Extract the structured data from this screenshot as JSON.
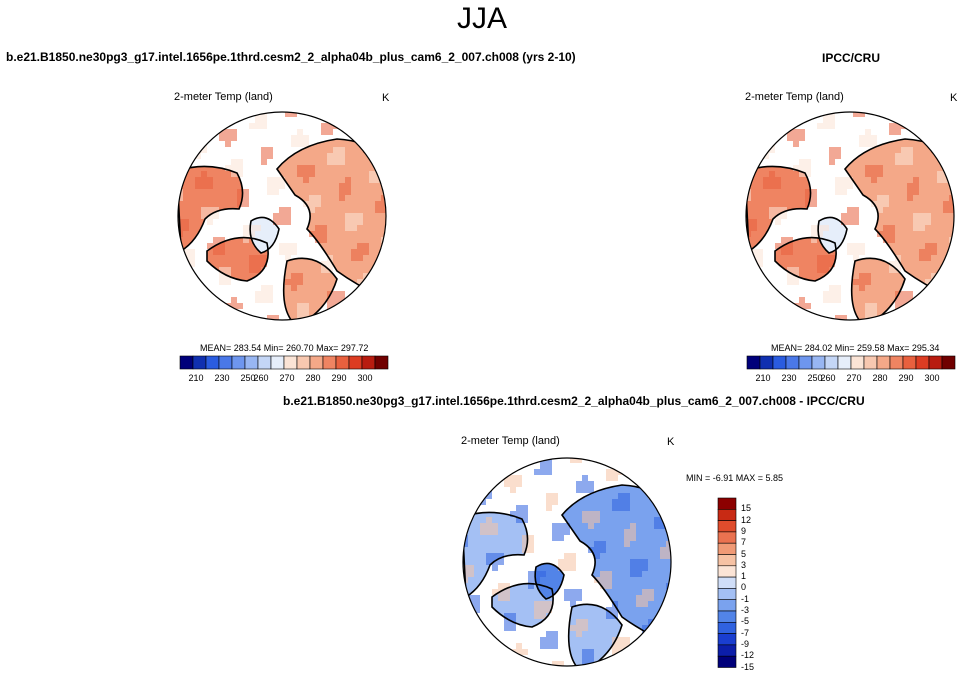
{
  "title": "JJA",
  "colors": {
    "abs": [
      "#00007a",
      "#1030b0",
      "#2a5ce0",
      "#4a78e8",
      "#6e96ee",
      "#98b6f2",
      "#c4d6f6",
      "#e6eefa",
      "#fbe4d6",
      "#f8c8b0",
      "#f4a888",
      "#ef8462",
      "#e8603e",
      "#dc3c22",
      "#b81c10",
      "#700000"
    ],
    "diff": [
      "#00007a",
      "#0c1eaa",
      "#1a3ed0",
      "#3062e0",
      "#5284e8",
      "#7aa2ee",
      "#a4c0f4",
      "#d0def8",
      "#fbe4d6",
      "#f6c2a4",
      "#f09a76",
      "#ea7250",
      "#e04c2c",
      "#c82a14",
      "#8c0000"
    ]
  },
  "panels": {
    "model": {
      "case": "b.e21.B1850.ne30pg3_g17.intel.1656pe.1thrd.cesm2_2_alpha04b_plus_cam6_2_007.ch008 (yrs 2-10)",
      "variable": "2-meter Temp (land)",
      "units": "K",
      "stats": "MEAN= 283.54  Min= 260.70  Max= 297.72",
      "colorbar_ticks": [
        "210",
        "230",
        "250",
        "260",
        "270",
        "280",
        "290",
        "300"
      ]
    },
    "obs": {
      "case": "IPCC/CRU",
      "variable": "2-meter Temp (land)",
      "units": "K",
      "stats": "MEAN= 284.02  Min= 259.58  Max= 295.34",
      "colorbar_ticks": [
        "210",
        "230",
        "250",
        "260",
        "270",
        "280",
        "290",
        "300"
      ]
    },
    "diff": {
      "case": "b.e21.B1850.ne30pg3_g17.intel.1656pe.1thrd.cesm2_2_alpha04b_plus_cam6_2_007.ch008 - IPCC/CRU",
      "variable": "2-meter Temp (land)",
      "units": "K",
      "stats": "MIN =  -6.91 MAX =   5.85",
      "colorbar_ticks": [
        "15",
        "12",
        "9",
        "7",
        "5",
        "3",
        "1",
        "0",
        "-1",
        "-3",
        "-5",
        "-7",
        "-9",
        "-12",
        "-15"
      ]
    }
  }
}
